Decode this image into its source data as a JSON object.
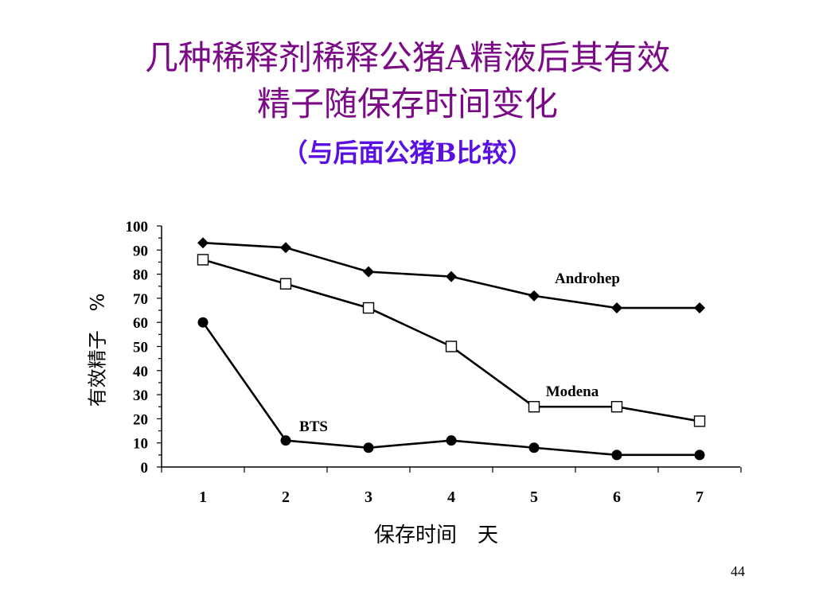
{
  "slide": {
    "title_line1": "几种稀释剂稀释公猪A精液后其有效",
    "title_line2": "精子随保存时间变化",
    "subtitle": "（与后面公猪B比较）",
    "page_number": "44",
    "title_color": "#7b0a86",
    "subtitle_color": "#5a10e0"
  },
  "chart_data": {
    "type": "line",
    "x": [
      1,
      2,
      3,
      4,
      5,
      6,
      7
    ],
    "xlabel": "保存时间　天",
    "ylabel": "有效精子　%",
    "ylim": [
      0,
      100
    ],
    "xlim": [
      1,
      7
    ],
    "yticks": [
      0,
      10,
      20,
      30,
      40,
      50,
      60,
      70,
      80,
      90,
      100
    ],
    "xticks": [
      1,
      2,
      3,
      4,
      5,
      6,
      7
    ],
    "grid": false,
    "legend": "none",
    "series": [
      {
        "name": "Androhep",
        "marker": "filled-diamond",
        "values": [
          93,
          91,
          81,
          79,
          71,
          66,
          66
        ]
      },
      {
        "name": "Modena",
        "marker": "open-square",
        "values": [
          86,
          76,
          66,
          50,
          25,
          25,
          19
        ]
      },
      {
        "name": "BTS",
        "marker": "filled-circle",
        "values": [
          60,
          11,
          8,
          11,
          8,
          5,
          5
        ]
      }
    ]
  }
}
